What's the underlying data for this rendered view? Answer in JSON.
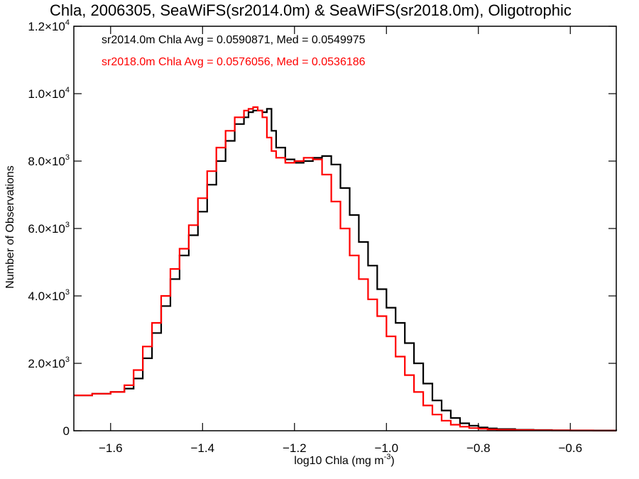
{
  "chart_data": {
    "type": "line",
    "title": "Chla, 2006305, SeaWiFS(sr2014.0m) & SeaWiFS(sr2018.0m), Oligotrophic",
    "xlabel": "log10 Chla (mg m",
    "xlabel_sup": "-3",
    "xlabel_suffix": ")",
    "ylabel": "Number of Observations",
    "xlim": [
      -1.68,
      -0.5
    ],
    "ylim": [
      0,
      12000
    ],
    "grid": false,
    "x_ticks": [
      {
        "value": -1.6,
        "label": "−1.6"
      },
      {
        "value": -1.4,
        "label": "−1.4"
      },
      {
        "value": -1.2,
        "label": "−1.2"
      },
      {
        "value": -1.0,
        "label": "−1.0"
      },
      {
        "value": -0.8,
        "label": "−0.8"
      },
      {
        "value": -0.6,
        "label": "−0.6"
      }
    ],
    "y_ticks": [
      {
        "value": 0,
        "base": "0",
        "exp": ""
      },
      {
        "value": 2000,
        "base": "2.0×10",
        "exp": "3"
      },
      {
        "value": 4000,
        "base": "4.0×10",
        "exp": "3"
      },
      {
        "value": 6000,
        "base": "6.0×10",
        "exp": "3"
      },
      {
        "value": 8000,
        "base": "8.0×10",
        "exp": "3"
      },
      {
        "value": 10000,
        "base": "1.0×10",
        "exp": "4"
      },
      {
        "value": 12000,
        "base": "1.2×10",
        "exp": "4"
      }
    ],
    "annotations": [
      "sr2014.0m Chla Avg = 0.0590871, Med = 0.0549975",
      "sr2018.0m Chla Avg = 0.0576056, Med = 0.0536186"
    ],
    "series": [
      {
        "color": "#000000",
        "x": [
          -1.68,
          -1.64,
          -1.6,
          -1.57,
          -1.55,
          -1.53,
          -1.51,
          -1.49,
          -1.47,
          -1.45,
          -1.43,
          -1.41,
          -1.39,
          -1.37,
          -1.35,
          -1.33,
          -1.31,
          -1.3,
          -1.29,
          -1.27,
          -1.26,
          -1.25,
          -1.24,
          -1.22,
          -1.2,
          -1.18,
          -1.16,
          -1.14,
          -1.12,
          -1.1,
          -1.08,
          -1.06,
          -1.04,
          -1.02,
          -1.0,
          -0.98,
          -0.96,
          -0.94,
          -0.92,
          -0.9,
          -0.88,
          -0.86,
          -0.84,
          -0.82,
          -0.8,
          -0.78,
          -0.76,
          -0.72,
          -0.68,
          -0.64,
          -0.6,
          -0.55,
          -0.5
        ],
        "y": [
          1050,
          1100,
          1150,
          1250,
          1550,
          2150,
          2900,
          3700,
          4500,
          5200,
          5800,
          6500,
          7300,
          8000,
          8600,
          9100,
          9300,
          9450,
          9500,
          9450,
          9550,
          8900,
          8400,
          8050,
          7950,
          8000,
          8100,
          8150,
          7900,
          7200,
          6400,
          5600,
          4900,
          4200,
          3650,
          3200,
          2600,
          2000,
          1400,
          900,
          600,
          380,
          220,
          150,
          100,
          70,
          50,
          30,
          20,
          15,
          10,
          8,
          5
        ]
      },
      {
        "color": "#ff0000",
        "x": [
          -1.68,
          -1.64,
          -1.6,
          -1.57,
          -1.55,
          -1.53,
          -1.51,
          -1.49,
          -1.47,
          -1.45,
          -1.43,
          -1.41,
          -1.39,
          -1.37,
          -1.35,
          -1.33,
          -1.31,
          -1.3,
          -1.29,
          -1.28,
          -1.27,
          -1.26,
          -1.25,
          -1.24,
          -1.22,
          -1.2,
          -1.18,
          -1.16,
          -1.14,
          -1.12,
          -1.1,
          -1.08,
          -1.06,
          -1.04,
          -1.02,
          -1.0,
          -0.98,
          -0.96,
          -0.94,
          -0.92,
          -0.9,
          -0.88,
          -0.86,
          -0.84,
          -0.82,
          -0.8,
          -0.78,
          -0.76,
          -0.72,
          -0.68,
          -0.64,
          -0.6,
          -0.55,
          -0.5
        ],
        "y": [
          1050,
          1100,
          1150,
          1350,
          1800,
          2500,
          3200,
          4000,
          4800,
          5400,
          6100,
          6900,
          7700,
          8400,
          8900,
          9300,
          9500,
          9550,
          9600,
          9500,
          9300,
          8700,
          8300,
          8100,
          7950,
          8000,
          8100,
          8050,
          7600,
          6800,
          6000,
          5200,
          4500,
          3900,
          3400,
          2800,
          2200,
          1650,
          1150,
          750,
          480,
          300,
          180,
          120,
          80,
          60,
          40,
          30,
          20,
          15,
          10,
          8,
          5,
          5
        ]
      }
    ]
  }
}
